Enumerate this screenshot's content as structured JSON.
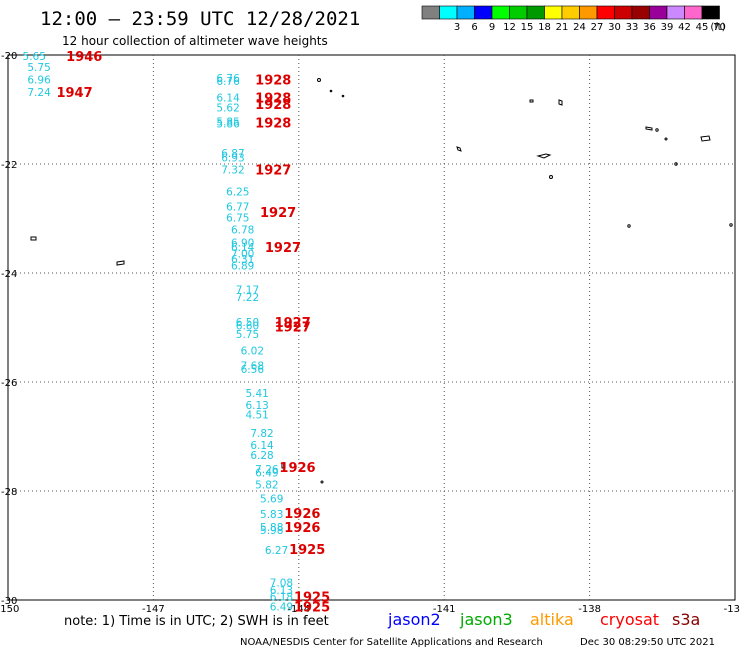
{
  "header": {
    "title": "12:00 — 23:59 UTC 12/28/2021",
    "subtitle": "12 hour collection of altimeter wave heights"
  },
  "legend": {
    "unit": "(ft)",
    "bins": [
      {
        "label": "",
        "color": "#808080"
      },
      {
        "label": "3",
        "color": "#00ffff"
      },
      {
        "label": "6",
        "color": "#00b0ff"
      },
      {
        "label": "9",
        "color": "#0000ff"
      },
      {
        "label": "12",
        "color": "#00ff00"
      },
      {
        "label": "15",
        "color": "#00cc00"
      },
      {
        "label": "18",
        "color": "#009900"
      },
      {
        "label": "21",
        "color": "#ffff00"
      },
      {
        "label": "24",
        "color": "#ffcc00"
      },
      {
        "label": "27",
        "color": "#ff9900"
      },
      {
        "label": "30",
        "color": "#ff0000"
      },
      {
        "label": "33",
        "color": "#cc0000"
      },
      {
        "label": "36",
        "color": "#990000"
      },
      {
        "label": "39",
        "color": "#990099"
      },
      {
        "label": "42",
        "color": "#cc88ff"
      },
      {
        "label": "45",
        "color": "#ff66cc"
      },
      {
        "label": "70",
        "color": "#000000"
      }
    ]
  },
  "axes": {
    "lon_ticks": [
      "-150",
      "-147",
      "-144",
      "-141",
      "-138",
      "-135"
    ],
    "lat_ticks": [
      "-20",
      "-22",
      "-24",
      "-26",
      "-28",
      "-30"
    ]
  },
  "observations": {
    "wave_heights": [
      {
        "v": "5.65",
        "lon": -149.7,
        "lat": -20.02
      },
      {
        "v": "5.75",
        "lon": -149.6,
        "lat": -20.22
      },
      {
        "v": "6.96",
        "lon": -149.6,
        "lat": -20.45
      },
      {
        "v": "7.24",
        "lon": -149.6,
        "lat": -20.68
      },
      {
        "v": "6.76",
        "lon": -145.7,
        "lat": -20.42
      },
      {
        "v": "6.76",
        "lon": -145.7,
        "lat": -20.48
      },
      {
        "v": "6.14",
        "lon": -145.7,
        "lat": -20.78
      },
      {
        "v": "5.62",
        "lon": -145.7,
        "lat": -20.96
      },
      {
        "v": "5.85",
        "lon": -145.7,
        "lat": -21.22
      },
      {
        "v": "5.86",
        "lon": -145.7,
        "lat": -21.26
      },
      {
        "v": "6.87",
        "lon": -145.6,
        "lat": -21.8
      },
      {
        "v": "6.93",
        "lon": -145.6,
        "lat": -21.88
      },
      {
        "v": "7.32",
        "lon": -145.6,
        "lat": -22.1
      },
      {
        "v": "6.25",
        "lon": -145.5,
        "lat": -22.5
      },
      {
        "v": "6.77",
        "lon": -145.5,
        "lat": -22.78
      },
      {
        "v": "6.75",
        "lon": -145.5,
        "lat": -22.98
      },
      {
        "v": "6.78",
        "lon": -145.4,
        "lat": -23.2
      },
      {
        "v": "6.90",
        "lon": -145.4,
        "lat": -23.44
      },
      {
        "v": "6.14",
        "lon": -145.4,
        "lat": -23.52
      },
      {
        "v": "7.00",
        "lon": -145.4,
        "lat": -23.64
      },
      {
        "v": "6.31",
        "lon": -145.4,
        "lat": -23.74
      },
      {
        "v": "6.89",
        "lon": -145.4,
        "lat": -23.86
      },
      {
        "v": "7.17",
        "lon": -145.3,
        "lat": -24.3
      },
      {
        "v": "7.22",
        "lon": -145.3,
        "lat": -24.44
      },
      {
        "v": "6.50",
        "lon": -145.3,
        "lat": -24.9
      },
      {
        "v": "6.60",
        "lon": -145.3,
        "lat": -24.96
      },
      {
        "v": "5.75",
        "lon": -145.3,
        "lat": -25.12
      },
      {
        "v": "6.02",
        "lon": -145.2,
        "lat": -25.42
      },
      {
        "v": "7.68",
        "lon": -145.2,
        "lat": -25.7
      },
      {
        "v": "6.56",
        "lon": -145.2,
        "lat": -25.76
      },
      {
        "v": "5.41",
        "lon": -145.1,
        "lat": -26.2
      },
      {
        "v": "6.13",
        "lon": -145.1,
        "lat": -26.42
      },
      {
        "v": "4.51",
        "lon": -145.1,
        "lat": -26.6
      },
      {
        "v": "7.82",
        "lon": -145.0,
        "lat": -26.94
      },
      {
        "v": "6.14",
        "lon": -145.0,
        "lat": -27.16
      },
      {
        "v": "6.28",
        "lon": -145.0,
        "lat": -27.34
      },
      {
        "v": "7.26",
        "lon": -144.9,
        "lat": -27.6
      },
      {
        "v": "6.49",
        "lon": -144.9,
        "lat": -27.66
      },
      {
        "v": "5.82",
        "lon": -144.9,
        "lat": -27.88
      },
      {
        "v": "5.69",
        "lon": -144.8,
        "lat": -28.14
      },
      {
        "v": "5.83",
        "lon": -144.8,
        "lat": -28.42
      },
      {
        "v": "5.88",
        "lon": -144.8,
        "lat": -28.66
      },
      {
        "v": "5.98",
        "lon": -144.8,
        "lat": -28.72
      },
      {
        "v": "6.27",
        "lon": -144.7,
        "lat": -29.08
      },
      {
        "v": "7.08",
        "lon": -144.6,
        "lat": -29.68
      },
      {
        "v": "6.13",
        "lon": -144.6,
        "lat": -29.82
      },
      {
        "v": "6.18",
        "lon": -144.6,
        "lat": -29.94
      },
      {
        "v": "6.49",
        "lon": -144.6,
        "lat": -30.12
      }
    ],
    "time_labels": [
      {
        "v": "1946",
        "lon": -148.8,
        "lat": -20.02,
        "color": "#880000"
      },
      {
        "v": "1947",
        "lon": -149.0,
        "lat": -20.68,
        "color": "#880000"
      },
      {
        "v": "1928",
        "lon": -144.9,
        "lat": -20.45
      },
      {
        "v": "1928",
        "lon": -144.9,
        "lat": -20.78
      },
      {
        "v": "1928",
        "lon": -144.9,
        "lat": -20.9
      },
      {
        "v": "1928",
        "lon": -144.9,
        "lat": -21.24
      },
      {
        "v": "1927",
        "lon": -144.9,
        "lat": -22.1
      },
      {
        "v": "1927",
        "lon": -144.8,
        "lat": -22.88
      },
      {
        "v": "1927",
        "lon": -144.7,
        "lat": -23.52
      },
      {
        "v": "1927",
        "lon": -144.5,
        "lat": -24.9
      },
      {
        "v": "1927",
        "lon": -144.5,
        "lat": -24.98
      },
      {
        "v": "1926",
        "lon": -144.4,
        "lat": -27.56
      },
      {
        "v": "1926",
        "lon": -144.3,
        "lat": -28.4
      },
      {
        "v": "1926",
        "lon": -144.3,
        "lat": -28.66
      },
      {
        "v": "1925",
        "lon": -144.2,
        "lat": -29.06
      },
      {
        "v": "1925",
        "lon": -144.1,
        "lat": -29.94
      },
      {
        "v": "1925",
        "lon": -144.1,
        "lat": -30.12
      }
    ]
  },
  "footer": {
    "note": "note:  1) Time is in UTC;  2) SWH is in feet",
    "satellites": [
      {
        "name": "jason2",
        "color": "#0000ff"
      },
      {
        "name": "jason3",
        "color": "#00aa00"
      },
      {
        "name": "altika",
        "color": "#ff9900"
      },
      {
        "name": "cryosat",
        "color": "#ff0000"
      },
      {
        "name": "s3a",
        "color": "#880000"
      }
    ],
    "credit": "NOAA/NESDIS Center for Satellite Applications and Research",
    "generated": "Dec 30 08:29:50 UTC 2021"
  }
}
